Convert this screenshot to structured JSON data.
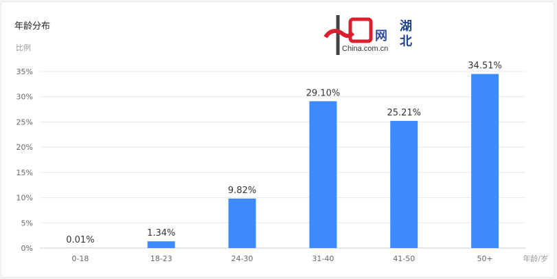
{
  "card": {
    "title": "年龄分布"
  },
  "chart_data": {
    "type": "bar",
    "title": "年龄分布",
    "ylabel": "比例",
    "xlabel": "年龄/岁",
    "categories": [
      "0-18",
      "18-23",
      "24-30",
      "31-40",
      "41-50",
      "50+"
    ],
    "values": [
      0.01,
      1.34,
      9.82,
      29.1,
      25.21,
      34.51
    ],
    "data_labels": [
      "0.01%",
      "1.34%",
      "9.82%",
      "29.10%",
      "25.21%",
      "34.51%"
    ],
    "ylim": [
      0,
      35
    ],
    "yticks": [
      "0%",
      "5%",
      "10%",
      "15%",
      "20%",
      "25%",
      "30%",
      "35%"
    ],
    "grid": true,
    "bar_color": "#3d8bff"
  },
  "watermark": {
    "brand": "中国网",
    "domain": "China.com.cn",
    "region": "湖北"
  }
}
